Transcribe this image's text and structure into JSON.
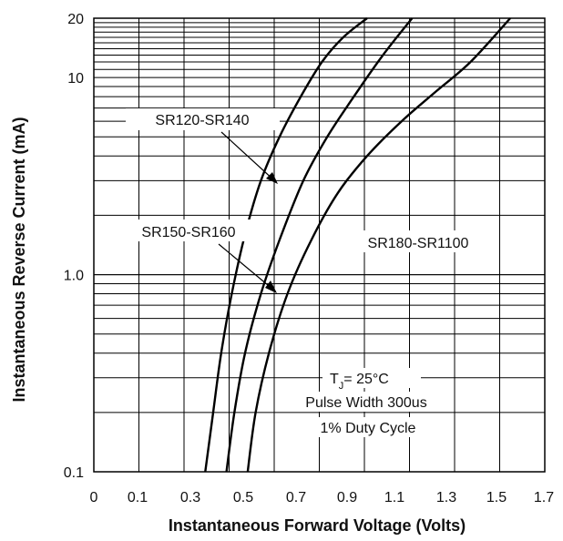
{
  "chart_data": {
    "type": "line",
    "xlabel": "Instantaneous Forward Voltage (Volts)",
    "ylabel": "Instantaneous Reverse Current (mA)",
    "x_tick_labels": [
      "0",
      "0.1",
      "0.3",
      "0.5",
      "0.7",
      "0.9",
      "1.1",
      "1.3",
      "1.5",
      "1.7"
    ],
    "y_tick_labels": [
      "0.1",
      "1.0",
      "10",
      "20"
    ],
    "xlim": [
      0,
      1.7
    ],
    "ylim": [
      0.1,
      20
    ],
    "y_scale": "log",
    "grid": true,
    "series": [
      {
        "name": "SR120-SR140",
        "x": [
          0.42,
          0.45,
          0.48,
          0.52,
          0.57,
          0.63,
          0.7,
          0.78,
          0.86,
          0.94,
          1.03
        ],
        "y": [
          0.1,
          0.2,
          0.4,
          0.8,
          1.6,
          3.0,
          5.0,
          8.0,
          12.0,
          16.0,
          20.0
        ]
      },
      {
        "name": "SR150-SR160",
        "x": [
          0.5,
          0.53,
          0.57,
          0.63,
          0.7,
          0.79,
          0.88,
          0.98,
          1.09,
          1.2
        ],
        "y": [
          0.1,
          0.2,
          0.4,
          0.8,
          1.5,
          3.0,
          5.0,
          8.0,
          13.0,
          20.0
        ]
      },
      {
        "name": "SR180-SR1100",
        "x": [
          0.58,
          0.61,
          0.66,
          0.73,
          0.82,
          0.92,
          1.03,
          1.16,
          1.29,
          1.42,
          1.57
        ],
        "y": [
          0.1,
          0.2,
          0.4,
          0.8,
          1.5,
          2.6,
          4.0,
          6.0,
          8.5,
          12.0,
          20.0
        ]
      }
    ],
    "annotations": {
      "conditions": [
        "T",
        "= 25°C",
        "Pulse Width 300us",
        "1% Duty Cycle"
      ],
      "conditions_subscript": "J"
    }
  }
}
